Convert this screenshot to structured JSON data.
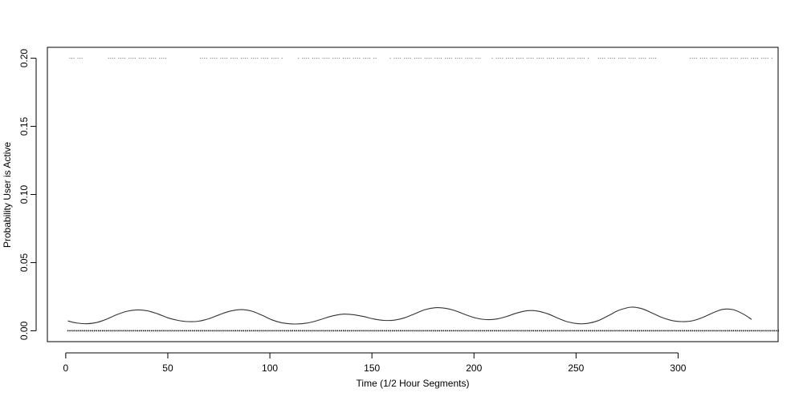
{
  "chart_data": {
    "type": "line",
    "title": "",
    "xlabel": "Time (1/2 Hour Segments)",
    "ylabel": "Probability User is Active",
    "xlim": [
      -9,
      349
    ],
    "ylim": [
      -0.008,
      0.208
    ],
    "x_ticks": [
      0,
      50,
      100,
      150,
      200,
      250,
      300
    ],
    "x_tick_labels": [
      "0",
      "50",
      "100",
      "150",
      "200",
      "250",
      "300"
    ],
    "y_ticks": [
      0.0,
      0.05,
      0.1,
      0.15,
      0.2
    ],
    "y_tick_labels": [
      "0.00",
      "0.05",
      "0.10",
      "0.15",
      "0.20"
    ],
    "grid": false,
    "legend": "none",
    "line_color": "#333333",
    "point_color": "#000000",
    "series": [
      {
        "kind": "line",
        "points": [
          [
            1,
            0.0072
          ],
          [
            5,
            0.0058
          ],
          [
            10,
            0.0051
          ],
          [
            15,
            0.006
          ],
          [
            20,
            0.0085
          ],
          [
            25,
            0.0118
          ],
          [
            30,
            0.0143
          ],
          [
            35,
            0.0153
          ],
          [
            40,
            0.0146
          ],
          [
            45,
            0.0124
          ],
          [
            50,
            0.0095
          ],
          [
            55,
            0.0076
          ],
          [
            60,
            0.0067
          ],
          [
            65,
            0.007
          ],
          [
            70,
            0.0088
          ],
          [
            75,
            0.0116
          ],
          [
            80,
            0.0142
          ],
          [
            86,
            0.0155
          ],
          [
            91,
            0.0144
          ],
          [
            96,
            0.0115
          ],
          [
            101,
            0.008
          ],
          [
            106,
            0.0058
          ],
          [
            111,
            0.005
          ],
          [
            116,
            0.0052
          ],
          [
            121,
            0.0065
          ],
          [
            126,
            0.0088
          ],
          [
            131,
            0.011
          ],
          [
            136,
            0.0122
          ],
          [
            141,
            0.0118
          ],
          [
            146,
            0.0104
          ],
          [
            151,
            0.0086
          ],
          [
            156,
            0.0076
          ],
          [
            161,
            0.0078
          ],
          [
            166,
            0.0095
          ],
          [
            171,
            0.0125
          ],
          [
            176,
            0.0155
          ],
          [
            181,
            0.0169
          ],
          [
            186,
            0.0165
          ],
          [
            191,
            0.0146
          ],
          [
            196,
            0.0117
          ],
          [
            201,
            0.0093
          ],
          [
            206,
            0.0082
          ],
          [
            211,
            0.0086
          ],
          [
            216,
            0.0105
          ],
          [
            221,
            0.013
          ],
          [
            226,
            0.0147
          ],
          [
            231,
            0.0145
          ],
          [
            236,
            0.0125
          ],
          [
            241,
            0.0093
          ],
          [
            246,
            0.0065
          ],
          [
            251,
            0.0052
          ],
          [
            256,
            0.0055
          ],
          [
            261,
            0.0075
          ],
          [
            266,
            0.0112
          ],
          [
            271,
            0.015
          ],
          [
            277,
            0.0173
          ],
          [
            282,
            0.0163
          ],
          [
            287,
            0.0132
          ],
          [
            292,
            0.0098
          ],
          [
            297,
            0.0075
          ],
          [
            302,
            0.0067
          ],
          [
            307,
            0.0073
          ],
          [
            312,
            0.0097
          ],
          [
            317,
            0.0131
          ],
          [
            322,
            0.0157
          ],
          [
            327,
            0.0155
          ],
          [
            332,
            0.0122
          ],
          [
            336,
            0.0083
          ]
        ]
      },
      {
        "kind": "points",
        "y": 0.2,
        "x_ranges": [
          [
            2,
            8
          ],
          [
            21,
            50
          ],
          [
            66,
            106
          ],
          [
            114,
            152
          ],
          [
            159,
            203
          ],
          [
            209,
            256
          ],
          [
            260,
            290
          ],
          [
            305,
            346
          ]
        ]
      },
      {
        "kind": "points",
        "y": 0.0,
        "x_ranges": [
          [
            1,
            349
          ]
        ]
      }
    ]
  }
}
